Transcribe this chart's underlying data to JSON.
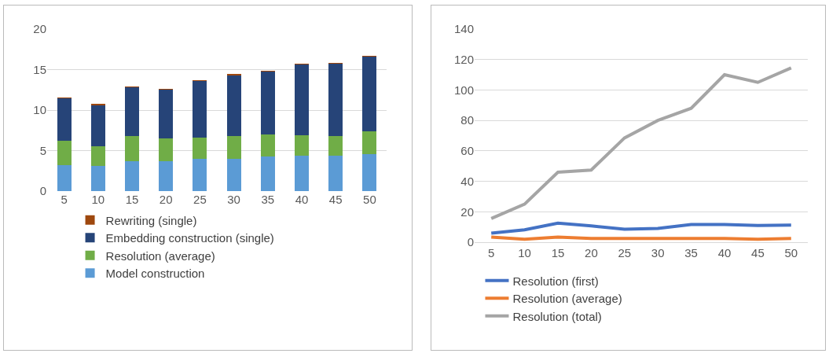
{
  "chart_data": [
    {
      "type": "bar",
      "stacked": true,
      "categories": [
        "5",
        "10",
        "15",
        "20",
        "25",
        "30",
        "35",
        "40",
        "45",
        "50"
      ],
      "ylim": [
        0,
        20
      ],
      "yticks": [
        0,
        5,
        10,
        15,
        20
      ],
      "grid": "y",
      "legend": "bottom",
      "series": [
        {
          "name": "Model construction",
          "color": "#5b9bd5",
          "values": [
            3.2,
            3.1,
            3.7,
            3.7,
            4.0,
            4.0,
            4.3,
            4.4,
            4.4,
            4.6
          ]
        },
        {
          "name": "Resolution (average)",
          "color": "#70ad47",
          "values": [
            3.0,
            2.4,
            3.1,
            2.8,
            2.6,
            2.8,
            2.7,
            2.5,
            2.4,
            2.8
          ]
        },
        {
          "name": "Embedding construction (single)",
          "color": "#264478",
          "values": [
            5.3,
            5.1,
            6.0,
            6.0,
            7.0,
            7.5,
            7.8,
            8.7,
            8.9,
            9.2
          ]
        },
        {
          "name": "Rewriting (single)",
          "color": "#9e480e",
          "values": [
            0.1,
            0.2,
            0.1,
            0.1,
            0.1,
            0.2,
            0.1,
            0.1,
            0.1,
            0.1
          ]
        }
      ]
    },
    {
      "type": "line",
      "categories": [
        "5",
        "10",
        "15",
        "20",
        "25",
        "30",
        "35",
        "40",
        "45",
        "50"
      ],
      "ylim": [
        0,
        140
      ],
      "yticks": [
        0,
        20,
        40,
        60,
        80,
        100,
        120,
        140
      ],
      "grid": "y",
      "legend": "bottom",
      "marker": "none",
      "line_style": "solid",
      "series": [
        {
          "name": "Resolution (first)",
          "color": "#4472c4",
          "values": [
            5.9,
            8.1,
            12.5,
            10.7,
            8.5,
            9,
            11.6,
            11.6,
            11,
            11.2
          ]
        },
        {
          "name": "Resolution (average)",
          "color": "#ed7d31",
          "values": [
            3.3,
            1.9,
            3.3,
            2.4,
            2.4,
            2.4,
            2.4,
            2.4,
            1.9,
            2.4
          ]
        },
        {
          "name": "Resolution (total)",
          "color": "#a5a5a5",
          "values": [
            15.6,
            25,
            46,
            47.4,
            68.5,
            80,
            88,
            110,
            105,
            114.5
          ]
        }
      ]
    }
  ]
}
